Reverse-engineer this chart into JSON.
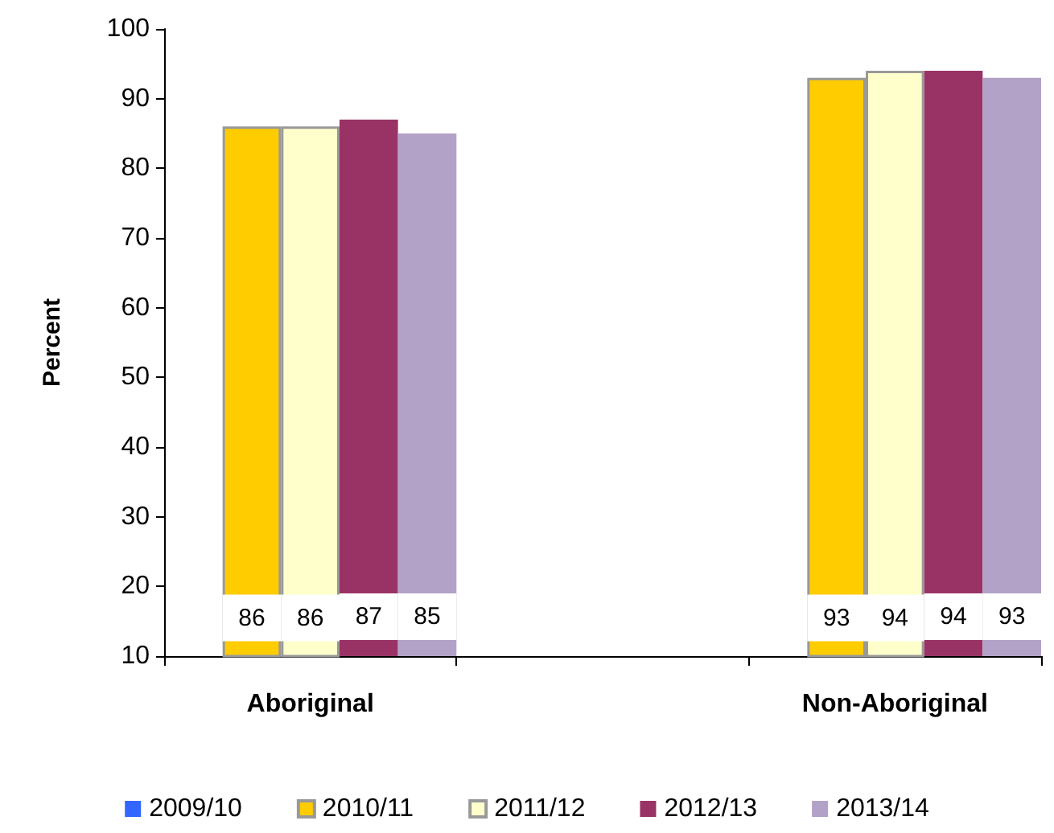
{
  "chart_data": {
    "type": "bar",
    "ylabel": "Percent",
    "categories": [
      "Aboriginal",
      null,
      "Non-Aboriginal"
    ],
    "series": [
      {
        "name": "2009/10",
        "color": "#3366ff",
        "values": [
          null,
          null,
          null
        ]
      },
      {
        "name": "2010/11",
        "color": "#ffcc00",
        "values": [
          86,
          null,
          93
        ]
      },
      {
        "name": "2011/12",
        "color": "#ffffcc",
        "values": [
          86,
          null,
          94
        ]
      },
      {
        "name": "2012/13",
        "color": "#993366",
        "values": [
          87,
          null,
          94
        ]
      },
      {
        "name": "2013/14",
        "color": "#b3a2c7",
        "values": [
          85,
          null,
          93
        ]
      }
    ],
    "ylim": [
      10,
      100
    ],
    "yticks": [
      10,
      20,
      30,
      40,
      50,
      60,
      70,
      80,
      90,
      100
    ],
    "grid": false,
    "legend": "bottom",
    "data_labels": true
  }
}
